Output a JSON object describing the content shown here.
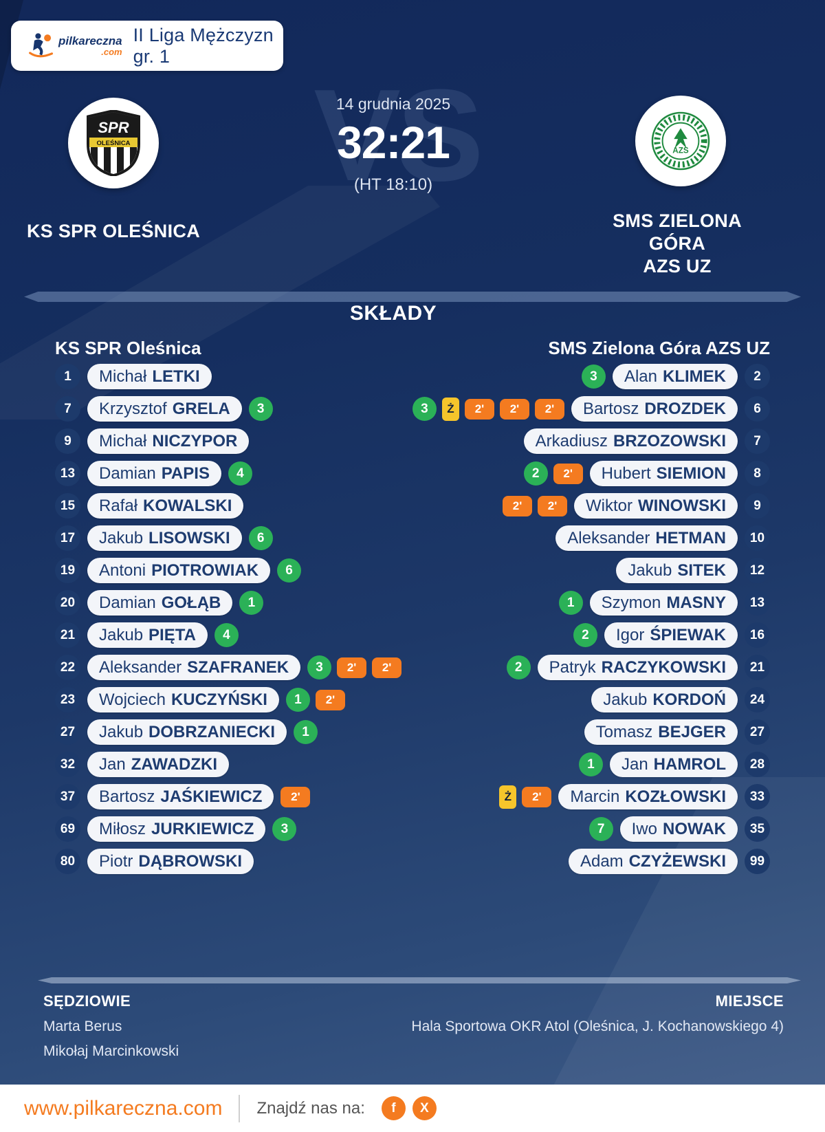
{
  "header": {
    "brand": "pilkareczna",
    "brand_tld": ".com",
    "league": "II Liga Mężczyzn gr. 1"
  },
  "match": {
    "date": "14 grudnia 2025",
    "score": "32:21",
    "halftime": "(HT 18:10)",
    "vs_watermark": "VS",
    "home": {
      "name": "KS SPR OLEŚNICA",
      "crest_text": "SPR",
      "crest_city": "OLEŚNICA"
    },
    "away": {
      "name_line1": "SMS ZIELONA GÓRA",
      "name_line2": "AZS UZ",
      "crest_text": "AZS"
    }
  },
  "lineups": {
    "title": "SKŁADY",
    "home_header": "KS SPR Oleśnica",
    "away_header": "SMS Zielona Góra AZS UZ",
    "badge_labels": {
      "suspension": "2'",
      "yellow": "Ż"
    },
    "home_players": [
      {
        "number": "1",
        "first": "Michał",
        "last": "LETKI",
        "goals": null,
        "yellow": false,
        "susp": 0
      },
      {
        "number": "7",
        "first": "Krzysztof",
        "last": "GRELA",
        "goals": 3,
        "yellow": false,
        "susp": 0
      },
      {
        "number": "9",
        "first": "Michał",
        "last": "NICZYPOR",
        "goals": null,
        "yellow": false,
        "susp": 0
      },
      {
        "number": "13",
        "first": "Damian",
        "last": "PAPIS",
        "goals": 4,
        "yellow": false,
        "susp": 0
      },
      {
        "number": "15",
        "first": "Rafał",
        "last": "KOWALSKI",
        "goals": null,
        "yellow": false,
        "susp": 0
      },
      {
        "number": "17",
        "first": "Jakub",
        "last": "LISOWSKI",
        "goals": 6,
        "yellow": false,
        "susp": 0
      },
      {
        "number": "19",
        "first": "Antoni",
        "last": "PIOTROWIAK",
        "goals": 6,
        "yellow": false,
        "susp": 0
      },
      {
        "number": "20",
        "first": "Damian",
        "last": "GOŁĄB",
        "goals": 1,
        "yellow": false,
        "susp": 0
      },
      {
        "number": "21",
        "first": "Jakub",
        "last": "PIĘTA",
        "goals": 4,
        "yellow": false,
        "susp": 0
      },
      {
        "number": "22",
        "first": "Aleksander",
        "last": "SZAFRANEK",
        "goals": 3,
        "yellow": false,
        "susp": 2
      },
      {
        "number": "23",
        "first": "Wojciech",
        "last": "KUCZYŃSKI",
        "goals": 1,
        "yellow": false,
        "susp": 1
      },
      {
        "number": "27",
        "first": "Jakub",
        "last": "DOBRZANIECKI",
        "goals": 1,
        "yellow": false,
        "susp": 0
      },
      {
        "number": "32",
        "first": "Jan",
        "last": "ZAWADZKI",
        "goals": null,
        "yellow": false,
        "susp": 0
      },
      {
        "number": "37",
        "first": "Bartosz",
        "last": "JAŚKIEWICZ",
        "goals": null,
        "yellow": false,
        "susp": 1
      },
      {
        "number": "69",
        "first": "Miłosz",
        "last": "JURKIEWICZ",
        "goals": 3,
        "yellow": false,
        "susp": 0
      },
      {
        "number": "80",
        "first": "Piotr",
        "last": "DĄBROWSKI",
        "goals": null,
        "yellow": false,
        "susp": 0
      }
    ],
    "away_players": [
      {
        "number": "2",
        "first": "Alan",
        "last": "KLIMEK",
        "goals": 3,
        "yellow": false,
        "susp": 0
      },
      {
        "number": "6",
        "first": "Bartosz",
        "last": "DROZDEK",
        "goals": 3,
        "yellow": true,
        "susp": 3
      },
      {
        "number": "7",
        "first": "Arkadiusz",
        "last": "BRZOZOWSKI",
        "goals": null,
        "yellow": false,
        "susp": 0
      },
      {
        "number": "8",
        "first": "Hubert",
        "last": "SIEMION",
        "goals": 2,
        "yellow": false,
        "susp": 1
      },
      {
        "number": "9",
        "first": "Wiktor",
        "last": "WINOWSKI",
        "goals": null,
        "yellow": false,
        "susp": 2
      },
      {
        "number": "10",
        "first": "Aleksander",
        "last": "HETMAN",
        "goals": null,
        "yellow": false,
        "susp": 0
      },
      {
        "number": "12",
        "first": "Jakub",
        "last": "SITEK",
        "goals": null,
        "yellow": false,
        "susp": 0
      },
      {
        "number": "13",
        "first": "Szymon",
        "last": "MASNY",
        "goals": 1,
        "yellow": false,
        "susp": 0
      },
      {
        "number": "16",
        "first": "Igor",
        "last": "ŚPIEWAK",
        "goals": 2,
        "yellow": false,
        "susp": 0
      },
      {
        "number": "21",
        "first": "Patryk",
        "last": "RACZYKOWSKI",
        "goals": 2,
        "yellow": false,
        "susp": 0
      },
      {
        "number": "24",
        "first": "Jakub",
        "last": "KORDOŃ",
        "goals": null,
        "yellow": false,
        "susp": 0
      },
      {
        "number": "27",
        "first": "Tomasz",
        "last": "BEJGER",
        "goals": null,
        "yellow": false,
        "susp": 0
      },
      {
        "number": "28",
        "first": "Jan",
        "last": "HAMROL",
        "goals": 1,
        "yellow": false,
        "susp": 0
      },
      {
        "number": "33",
        "first": "Marcin",
        "last": "KOZŁOWSKI",
        "goals": null,
        "yellow": true,
        "susp": 1
      },
      {
        "number": "35",
        "first": "Iwo",
        "last": "NOWAK",
        "goals": 7,
        "yellow": false,
        "susp": 0
      },
      {
        "number": "99",
        "first": "Adam",
        "last": "CZYŻEWSKI",
        "goals": null,
        "yellow": false,
        "susp": 0
      }
    ]
  },
  "footer": {
    "referees_label": "SĘDZIOWIE",
    "referees": [
      "Marta Berus",
      "Mikołaj Marcinkowski"
    ],
    "venue_label": "MIEJSCE",
    "venue": "Hala Sportowa OKR Atol (Oleśnica, J. Kochanowskiego 4)"
  },
  "bottombar": {
    "url": "www.pilkareczna.com",
    "find_us": "Znajdź nas na:",
    "facebook_label": "f",
    "x_label": "X"
  },
  "colors": {
    "accent_orange": "#f47b20",
    "goal_green": "#2bb157",
    "susp_orange": "#f47b20",
    "yellow_card": "#f6c52b",
    "navy_bg": "#152e5f",
    "pill_text_navy": "#1e3c70"
  }
}
